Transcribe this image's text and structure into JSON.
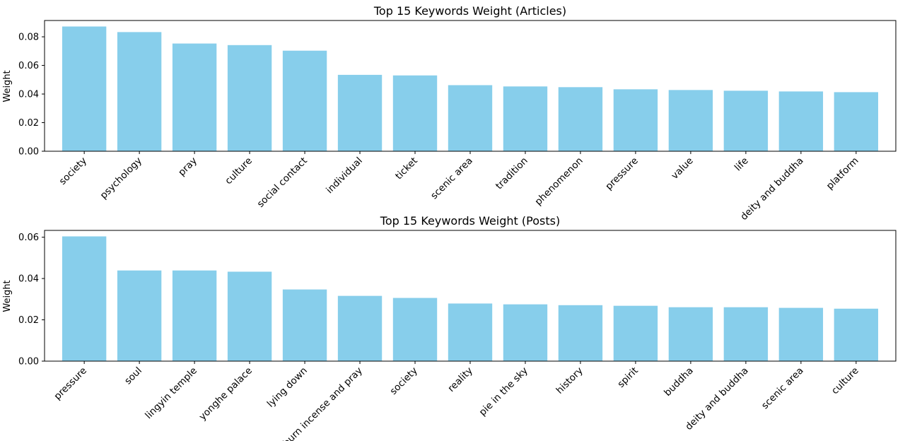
{
  "chart_data": [
    {
      "type": "bar",
      "title": "Top 15 Keywords Weight (Articles)",
      "xlabel": "",
      "ylabel": "Weight",
      "ylim": [
        0,
        0.0914
      ],
      "yticks": [
        "0.00",
        "0.02",
        "0.04",
        "0.06",
        "0.08"
      ],
      "categories": [
        "society",
        "psychology",
        "pray",
        "culture",
        "social contact",
        "individual",
        "ticket",
        "scenic area",
        "tradition",
        "phenomenon",
        "pressure",
        "value",
        "life",
        "deity and buddha",
        "platform"
      ],
      "values": [
        0.0872,
        0.0833,
        0.0753,
        0.0742,
        0.0703,
        0.0534,
        0.053,
        0.0462,
        0.0453,
        0.0448,
        0.0433,
        0.0428,
        0.0423,
        0.0418,
        0.0413
      ],
      "bar_color": "#87ceeb",
      "grid": false
    },
    {
      "type": "bar",
      "title": "Top 15 Keywords Weight (Posts)",
      "xlabel": "",
      "ylabel": "Weight",
      "ylim": [
        0,
        0.0633
      ],
      "yticks": [
        "0.00",
        "0.02",
        "0.04",
        "0.06"
      ],
      "categories": [
        "pressure",
        "soul",
        "lingyin temple",
        "yonghe palace",
        "lying down",
        "burn incense and pray",
        "society",
        "reality",
        "pie in the sky",
        "history",
        "spirit",
        "buddha",
        "deity and buddha",
        "scenic area",
        "culture"
      ],
      "values": [
        0.0604,
        0.0439,
        0.0439,
        0.0433,
        0.0347,
        0.0316,
        0.0306,
        0.0279,
        0.0275,
        0.0271,
        0.0268,
        0.0261,
        0.0261,
        0.0258,
        0.0254
      ],
      "bar_color": "#87ceeb",
      "grid": false
    }
  ]
}
